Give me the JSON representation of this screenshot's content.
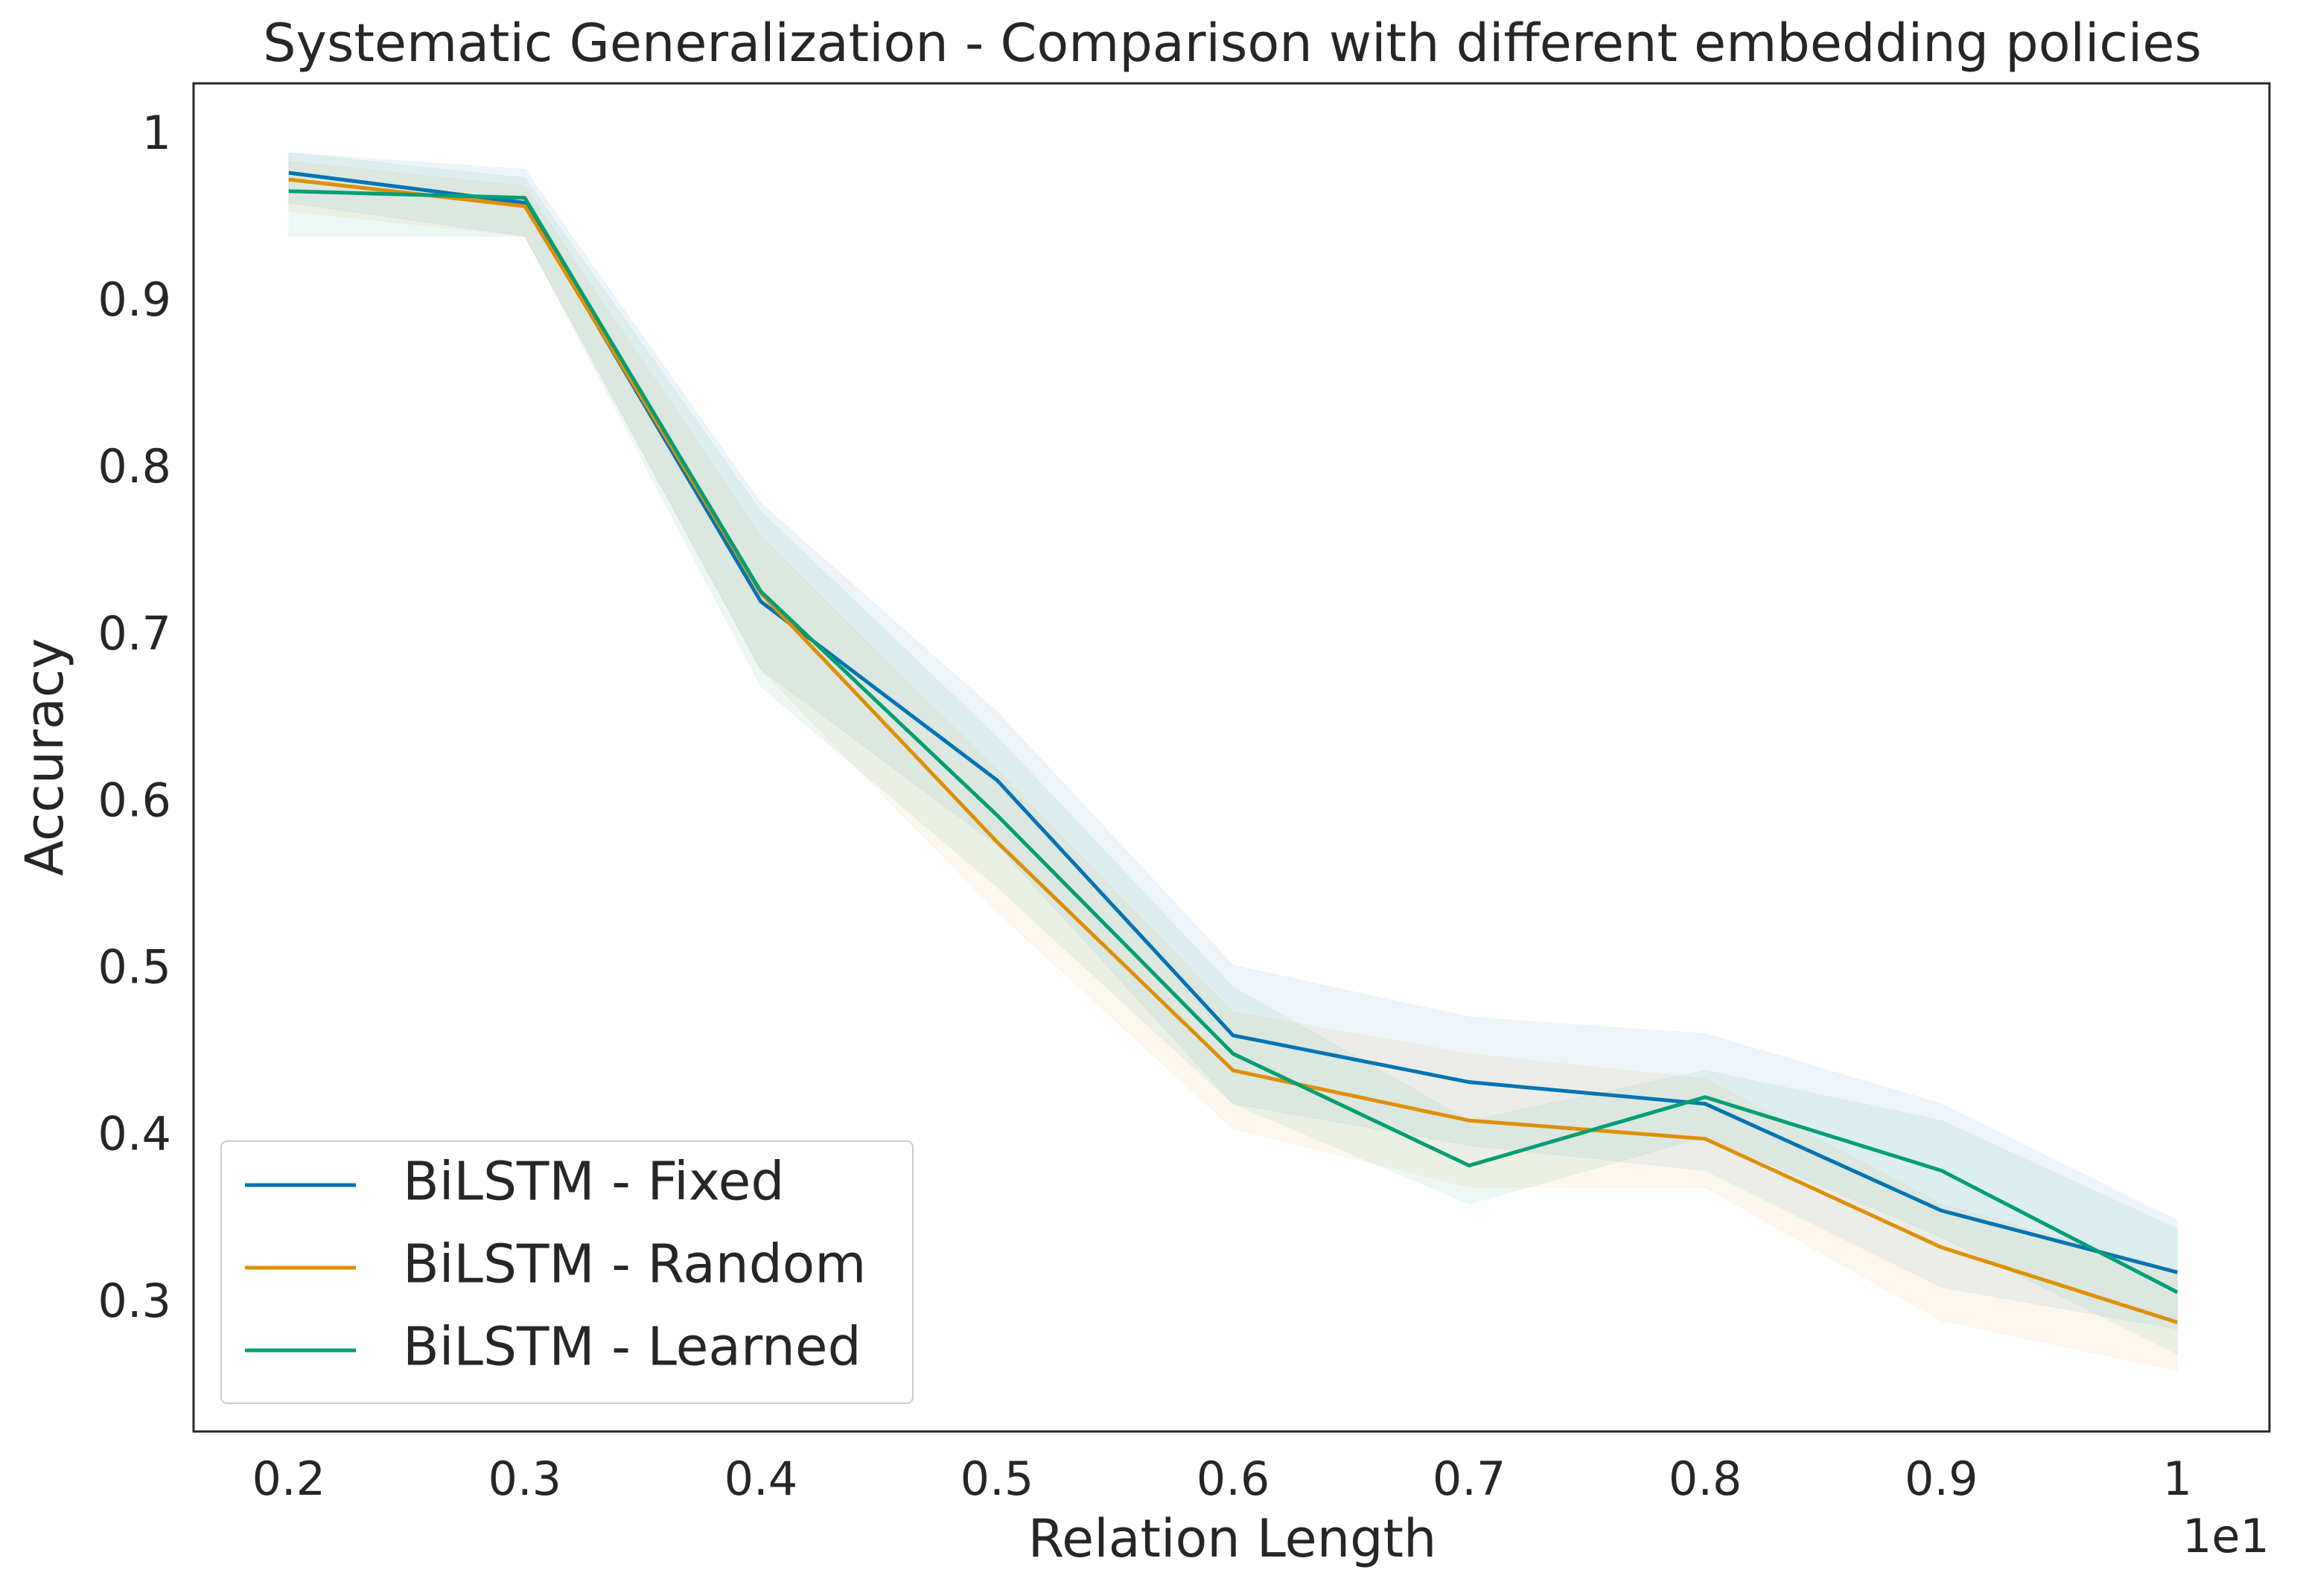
{
  "chart_data": {
    "type": "line",
    "title": "Systematic Generalization - Comparison with different embedding policies",
    "xlabel": "Relation Length",
    "ylabel": "Accuracy",
    "x_offset_label": "1e1",
    "x": [
      0.2,
      0.3,
      0.4,
      0.5,
      0.6,
      0.7,
      0.8,
      0.9,
      1.0
    ],
    "series": [
      {
        "name": "BiLSTM - Fixed",
        "color": "#0173b2",
        "values": [
          0.978,
          0.96,
          0.721,
          0.614,
          0.461,
          0.433,
          0.42,
          0.356,
          0.319
        ],
        "ci_lower": [
          0.96,
          0.94,
          0.68,
          0.575,
          0.42,
          0.395,
          0.38,
          0.31,
          0.285
        ],
        "ci_upper": [
          0.99,
          0.98,
          0.78,
          0.655,
          0.503,
          0.472,
          0.462,
          0.42,
          0.35
        ]
      },
      {
        "name": "BiLSTM - Random",
        "color": "#de8f05",
        "values": [
          0.974,
          0.958,
          0.726,
          0.577,
          0.44,
          0.41,
          0.399,
          0.334,
          0.289
        ],
        "ci_lower": [
          0.955,
          0.94,
          0.68,
          0.535,
          0.405,
          0.37,
          0.37,
          0.29,
          0.26
        ],
        "ci_upper": [
          0.985,
          0.97,
          0.76,
          0.62,
          0.475,
          0.45,
          0.435,
          0.36,
          0.32
        ]
      },
      {
        "name": "BiLSTM - Learned",
        "color": "#029e73",
        "values": [
          0.967,
          0.963,
          0.727,
          0.593,
          0.45,
          0.383,
          0.424,
          0.38,
          0.307
        ],
        "ci_lower": [
          0.94,
          0.94,
          0.67,
          0.55,
          0.42,
          0.36,
          0.4,
          0.34,
          0.27
        ],
        "ci_upper": [
          0.99,
          0.975,
          0.775,
          0.64,
          0.49,
          0.41,
          0.44,
          0.41,
          0.345
        ]
      }
    ],
    "xlim": [
      0.1597,
      1.039
    ],
    "ylim": [
      0.2236,
      1.0316
    ],
    "xticks": [
      0.2,
      0.3,
      0.4,
      0.5,
      0.6,
      0.7,
      0.8,
      0.9,
      1.0
    ],
    "yticks": [
      0.3,
      0.4,
      0.5,
      0.6,
      0.7,
      0.8,
      0.9,
      1.0
    ],
    "grid": false,
    "legend_position": "lower left"
  }
}
